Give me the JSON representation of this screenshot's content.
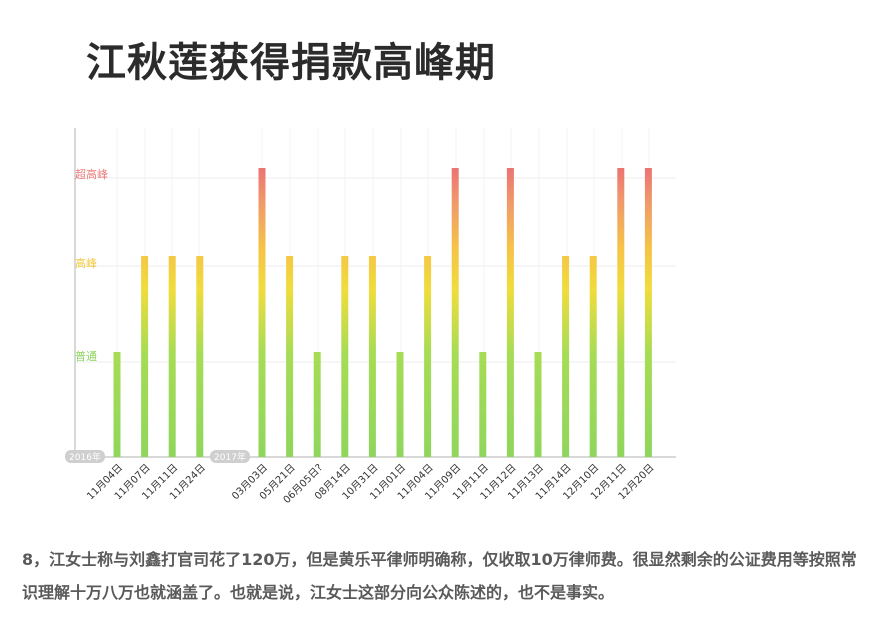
{
  "title": "江秋莲获得捐款高峰期",
  "caption": "8，江女士称与刘鑫打官司花了120万，但是黄乐平律师明确称，仅收取10万律师费。很显然剩余的公证费用等按照常识理解十万八万也就涵盖了。也就是说，江女士这部分向公众陈述的，也不是事实。",
  "colors": {
    "level_1": "#8fd65c",
    "level_2": "#f3c93e",
    "level_3": "#ec7b7b",
    "axis": "#cccccc",
    "grid": "#ededed",
    "badge": "#cfcfcf"
  },
  "chart_data": {
    "type": "bar",
    "title": "江秋莲获得捐款高峰期",
    "y_levels": [
      "普通",
      "高峰",
      "超高峰"
    ],
    "groups": [
      {
        "year": "2016年",
        "categories": [
          "11月04日",
          "11月07日",
          "11月11日",
          "11月24日"
        ],
        "values": [
          1,
          2,
          2,
          2
        ]
      },
      {
        "year": "2017年",
        "categories": [
          "03月03日",
          "05月21日",
          "06月05日?",
          "08月14日",
          "10月31日",
          "11月01日",
          "11月04日",
          "11月09日",
          "11月11日",
          "11月12日",
          "11月13日",
          "11月14日",
          "12月10日",
          "12月11日",
          "12月20日"
        ],
        "values": [
          3,
          2,
          1,
          2,
          2,
          1,
          2,
          3,
          1,
          3,
          1,
          2,
          2,
          3,
          3
        ]
      }
    ],
    "ylim": [
      0,
      3
    ],
    "grid": true,
    "legend": "none"
  }
}
